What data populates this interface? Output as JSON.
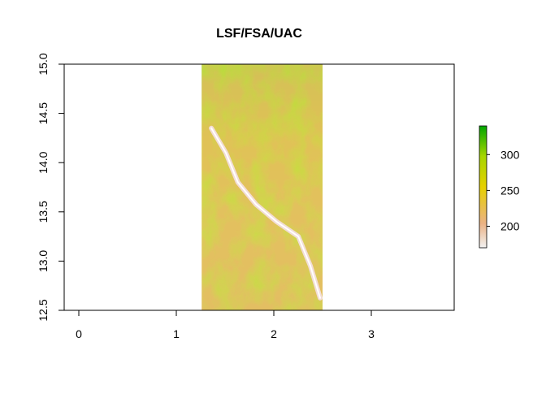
{
  "chart_data": {
    "type": "heatmap",
    "title": "LSF/FSA/UAC",
    "xlabel": "",
    "ylabel": "",
    "xlim": [
      -0.15,
      3.85
    ],
    "ylim": [
      12.5,
      15.0
    ],
    "x_ticks": [
      "0",
      "1",
      "2",
      "3"
    ],
    "y_ticks": [
      "12.5",
      "13.0",
      "13.5",
      "14.0",
      "14.5",
      "15.0"
    ],
    "raster_extent": {
      "x": [
        1.26,
        2.5
      ],
      "y": [
        12.5,
        15.0
      ]
    },
    "value_range": [
      170,
      340
    ],
    "legend": {
      "placement": "right",
      "ticks": [
        "200",
        "250",
        "300"
      ],
      "colors": [
        "#f2f2f2",
        "#ebb284",
        "#e6d000",
        "#a6d600",
        "#00a600"
      ]
    }
  }
}
